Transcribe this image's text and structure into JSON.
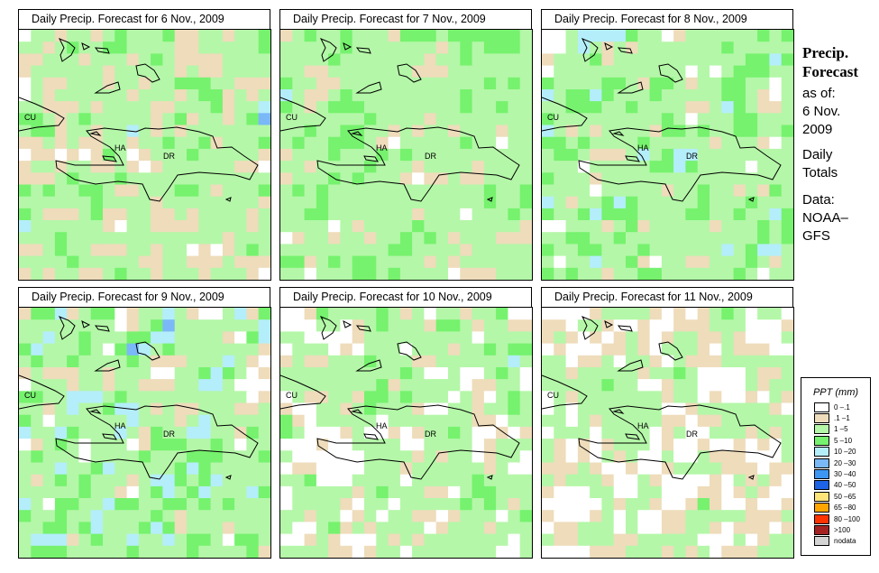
{
  "panels": [
    {
      "title": "Daily Precip. Forecast for  6 Nov., 2009",
      "weights": [
        0.15,
        0.25,
        0.35,
        0.13,
        0.09,
        0.03
      ]
    },
    {
      "title": "Daily Precip. Forecast for  7 Nov., 2009",
      "weights": [
        0.12,
        0.15,
        0.45,
        0.2,
        0.08,
        0.0
      ]
    },
    {
      "title": "Daily Precip. Forecast for  8 Nov., 2009",
      "weights": [
        0.22,
        0.08,
        0.35,
        0.15,
        0.18,
        0.02
      ]
    },
    {
      "title": "Daily Precip. Forecast for  9 Nov., 2009",
      "weights": [
        0.22,
        0.08,
        0.35,
        0.12,
        0.15,
        0.08
      ]
    },
    {
      "title": "Daily Precip. Forecast for  10 Nov., 2009",
      "weights": [
        0.33,
        0.1,
        0.35,
        0.17,
        0.04,
        0.01
      ]
    },
    {
      "title": "Daily Precip. Forecast for  11 Nov., 2009",
      "weights": [
        0.4,
        0.15,
        0.35,
        0.1,
        0.0,
        0.0
      ]
    }
  ],
  "map_labels": {
    "cu": "CU",
    "ha": "HA",
    "dr": "DR"
  },
  "side": {
    "title1": "Precip.",
    "title2": "Forecast",
    "asof": "as of:",
    "date1": "6 Nov.",
    "date2": "2009",
    "daily1": "Daily",
    "daily2": "Totals",
    "data1": "Data:",
    "data2": "NOAA–",
    "data3": "GFS"
  },
  "legend": {
    "title": "PPT (mm)",
    "items": [
      {
        "label": "0 –.1",
        "color": "#ffffff"
      },
      {
        "label": ".1 –1",
        "color": "#eedcbb"
      },
      {
        "label": "1 –5",
        "color": "#b4f7a8"
      },
      {
        "label": "5 –10",
        "color": "#76f26e"
      },
      {
        "label": "10 –20",
        "color": "#b4eefa"
      },
      {
        "label": "20 –30",
        "color": "#7ab8f8"
      },
      {
        "label": "30 –40",
        "color": "#3d97f2"
      },
      {
        "label": "40 –50",
        "color": "#1d63e6"
      },
      {
        "label": "50 –65",
        "color": "#ffe47a"
      },
      {
        "label": "65 –80",
        "color": "#ffa500"
      },
      {
        "label": "80 –100",
        "color": "#ff3300"
      },
      {
        "label": ">100",
        "color": "#a52222"
      },
      {
        "label": "nodata",
        "color": "#d4d4d4"
      }
    ]
  }
}
